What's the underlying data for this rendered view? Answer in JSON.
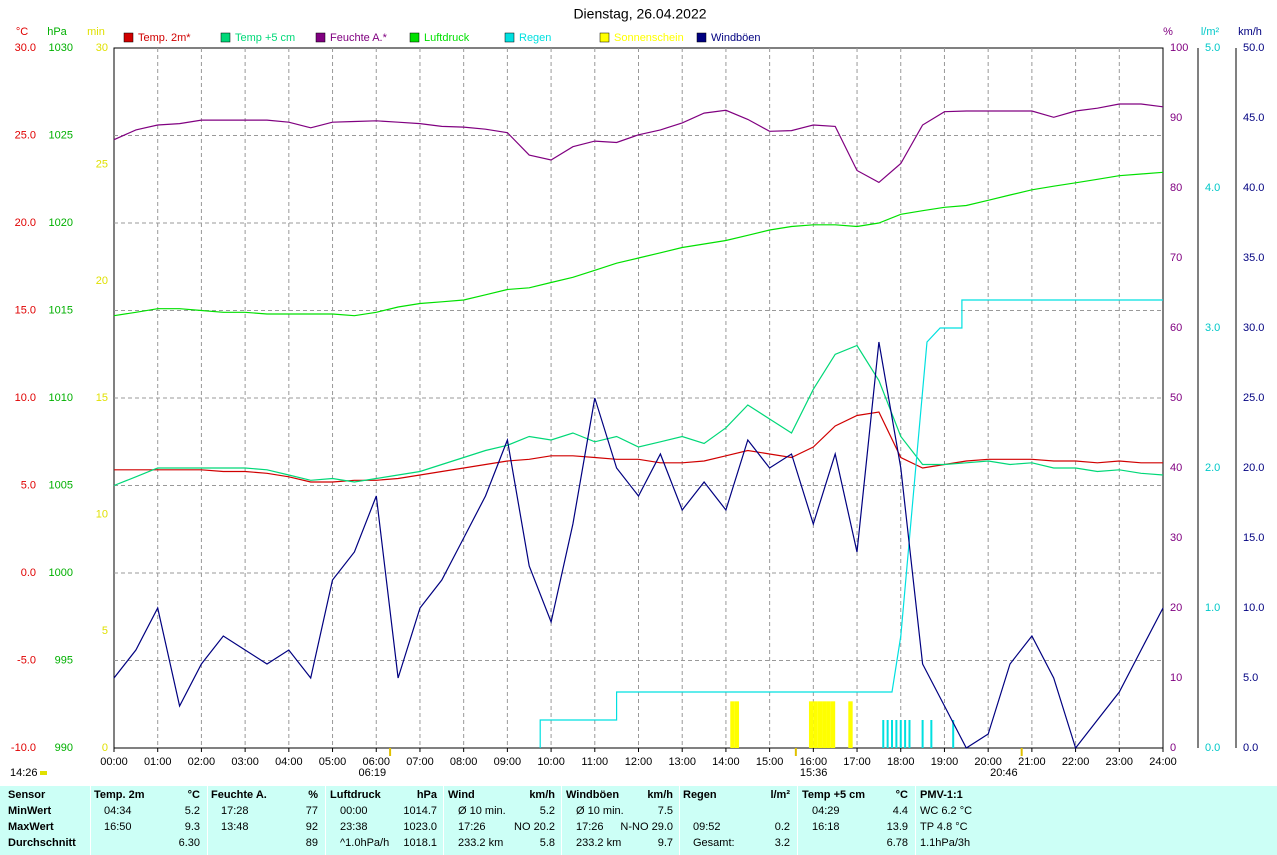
{
  "chart_data": {
    "type": "line",
    "title": "Dienstag, 26.04.2022",
    "xlim": [
      0,
      24
    ],
    "xticks": [
      {
        "value": 0,
        "label": "00:00"
      },
      {
        "value": 1,
        "label": "01:00"
      },
      {
        "value": 2,
        "label": "02:00"
      },
      {
        "value": 3,
        "label": "03:00"
      },
      {
        "value": 4,
        "label": "04:00"
      },
      {
        "value": 5,
        "label": "05:00"
      },
      {
        "value": 6,
        "label": "06:00"
      },
      {
        "value": 7,
        "label": "07:00"
      },
      {
        "value": 8,
        "label": "08:00"
      },
      {
        "value": 9,
        "label": "09:00"
      },
      {
        "value": 10,
        "label": "10:00"
      },
      {
        "value": 11,
        "label": "11:00"
      },
      {
        "value": 12,
        "label": "12:00"
      },
      {
        "value": 13,
        "label": "13:00"
      },
      {
        "value": 14,
        "label": "14:00"
      },
      {
        "value": 15,
        "label": "15:00"
      },
      {
        "value": 16,
        "label": "16:00"
      },
      {
        "value": 17,
        "label": "17:00"
      },
      {
        "value": 18,
        "label": "18:00"
      },
      {
        "value": 19,
        "label": "19:00"
      },
      {
        "value": 20,
        "label": "20:00"
      },
      {
        "value": 21,
        "label": "21:00"
      },
      {
        "value": 22,
        "label": "22:00"
      },
      {
        "value": 23,
        "label": "23:00"
      },
      {
        "value": 24,
        "label": "24:00"
      }
    ],
    "x": [
      0,
      0.5,
      1,
      1.5,
      2,
      2.5,
      3,
      3.5,
      4,
      4.5,
      5,
      5.5,
      6,
      6.5,
      7,
      7.5,
      8,
      8.5,
      9,
      9.5,
      10,
      10.5,
      11,
      11.5,
      12,
      12.5,
      13,
      13.5,
      14,
      14.5,
      15,
      15.5,
      16,
      16.5,
      17,
      17.5,
      18,
      18.5,
      19,
      19.5,
      20,
      20.5,
      21,
      21.5,
      22,
      22.5,
      23,
      23.5,
      24
    ],
    "grid": true,
    "axes": [
      {
        "id": "y",
        "label": "°C",
        "color": "#e00000",
        "side": "left",
        "lim": [
          -10,
          30
        ],
        "ticks": [
          {
            "value": 30,
            "label": "30.0"
          },
          {
            "value": 25,
            "label": "25.0"
          },
          {
            "value": 20,
            "label": "20.0"
          },
          {
            "value": 15,
            "label": "15.0"
          },
          {
            "value": 10,
            "label": "10.0"
          },
          {
            "value": 5,
            "label": "5.0"
          },
          {
            "value": 0,
            "label": "0.0"
          },
          {
            "value": -5,
            "label": "-5.0"
          },
          {
            "value": -10,
            "label": "-10.0"
          }
        ]
      },
      {
        "id": "y2",
        "label": "hPa",
        "color": "#00b000",
        "side": "left",
        "lim": [
          990,
          1030
        ],
        "ticks": [
          1030,
          1025,
          1020,
          1015,
          1010,
          1005,
          1000,
          995,
          990
        ]
      },
      {
        "id": "y3",
        "label": "min",
        "color": "#e0e000",
        "side": "left",
        "lim": [
          0,
          30
        ],
        "ticks": [
          30,
          25,
          20,
          15,
          10,
          5,
          0
        ]
      },
      {
        "id": "y4",
        "label": "%",
        "color": "#800080",
        "side": "right",
        "lim": [
          0,
          100
        ],
        "ticks": [
          100,
          90,
          80,
          70,
          60,
          50,
          40,
          30,
          20,
          10,
          0
        ]
      },
      {
        "id": "y5",
        "label": "l/m²",
        "color": "#00c8c8",
        "side": "right",
        "lim": [
          0,
          5
        ],
        "ticks": [
          {
            "value": 5,
            "label": "5.0"
          },
          {
            "value": 4,
            "label": "4.0"
          },
          {
            "value": 3,
            "label": "3.0"
          },
          {
            "value": 2,
            "label": "2.0"
          },
          {
            "value": 1,
            "label": "1.0"
          },
          {
            "value": 0,
            "label": "0.0"
          }
        ]
      },
      {
        "id": "y6",
        "label": "km/h",
        "color": "#000080",
        "side": "right",
        "lim": [
          0,
          50
        ],
        "ticks": [
          {
            "value": 50,
            "label": "50.0"
          },
          {
            "value": 45,
            "label": "45.0"
          },
          {
            "value": 40,
            "label": "40.0"
          },
          {
            "value": 35,
            "label": "35.0"
          },
          {
            "value": 30,
            "label": "30.0"
          },
          {
            "value": 25,
            "label": "25.0"
          },
          {
            "value": 20,
            "label": "20.0"
          },
          {
            "value": 15,
            "label": "15.0"
          },
          {
            "value": 10,
            "label": "10.0"
          },
          {
            "value": 5,
            "label": "5.0"
          },
          {
            "value": 0,
            "label": "0.0"
          }
        ]
      }
    ],
    "series": [
      {
        "name": "Temp. 2m*",
        "color": "#d00000",
        "axis": "y",
        "type": "line",
        "values": [
          5.9,
          5.9,
          5.9,
          5.9,
          5.9,
          5.8,
          5.8,
          5.7,
          5.5,
          5.2,
          5.2,
          5.3,
          5.3,
          5.4,
          5.6,
          5.8,
          6.0,
          6.2,
          6.4,
          6.5,
          6.7,
          6.7,
          6.6,
          6.5,
          6.5,
          6.3,
          6.3,
          6.4,
          6.7,
          7.0,
          6.8,
          6.6,
          7.2,
          8.4,
          9.0,
          9.2,
          6.6,
          6.0,
          6.2,
          6.4,
          6.5,
          6.5,
          6.5,
          6.4,
          6.4,
          6.3,
          6.4,
          6.3,
          6.3
        ]
      },
      {
        "name": "Temp +5 cm",
        "color": "#00d878",
        "axis": "y",
        "type": "line",
        "values": [
          5.0,
          5.5,
          6.0,
          6.0,
          6.0,
          6.0,
          6.0,
          5.9,
          5.6,
          5.3,
          5.4,
          5.2,
          5.4,
          5.6,
          5.8,
          6.2,
          6.6,
          7.0,
          7.3,
          7.8,
          7.6,
          8.0,
          7.5,
          7.8,
          7.2,
          7.5,
          7.8,
          7.4,
          8.3,
          9.6,
          8.8,
          8.0,
          10.5,
          12.5,
          13.0,
          11.0,
          7.8,
          6.2,
          6.2,
          6.3,
          6.4,
          6.2,
          6.3,
          6.0,
          6.0,
          5.8,
          5.9,
          5.7,
          5.6
        ]
      },
      {
        "name": "Feuchte A.*",
        "color": "#800080",
        "axis": "y4",
        "type": "line",
        "values": [
          86.9,
          88.3,
          89.0,
          89.2,
          89.7,
          89.7,
          89.7,
          89.7,
          89.4,
          88.6,
          89.4,
          89.5,
          89.6,
          89.4,
          89.2,
          88.8,
          88.7,
          88.4,
          87.9,
          84.7,
          84.0,
          85.9,
          86.7,
          86.5,
          87.6,
          88.3,
          89.3,
          90.7,
          91.1,
          89.8,
          88.1,
          88.2,
          89.0,
          88.8,
          82.5,
          80.8,
          83.5,
          89.0,
          90.9,
          91.0,
          91.0,
          91.0,
          91.0,
          90.1,
          91.0,
          91.4,
          92.0,
          92.0,
          91.6
        ]
      },
      {
        "name": "Luftdruck",
        "color": "#00e000",
        "axis": "y2",
        "type": "line",
        "values": [
          1014.7,
          1014.9,
          1015.1,
          1015.1,
          1015.0,
          1014.9,
          1014.9,
          1014.8,
          1014.8,
          1014.8,
          1014.8,
          1014.7,
          1014.9,
          1015.2,
          1015.4,
          1015.5,
          1015.6,
          1015.9,
          1016.2,
          1016.3,
          1016.6,
          1016.9,
          1017.3,
          1017.7,
          1018.0,
          1018.3,
          1018.6,
          1018.8,
          1019.0,
          1019.3,
          1019.6,
          1019.8,
          1019.9,
          1019.9,
          1019.8,
          1020.0,
          1020.5,
          1020.7,
          1020.9,
          1021.0,
          1021.3,
          1021.6,
          1021.9,
          1022.1,
          1022.3,
          1022.5,
          1022.7,
          1022.8,
          1022.9
        ]
      },
      {
        "name": "Regen",
        "color": "#00e0e0",
        "axis": "y5",
        "type": "line",
        "x": [
          9.75,
          9.75,
          11.5,
          11.5,
          17.8,
          18.0,
          18.2,
          18.4,
          18.6,
          18.9,
          19.4,
          19.4,
          24
        ],
        "values": [
          0,
          0.2,
          0.2,
          0.4,
          0.4,
          0.8,
          1.5,
          2.2,
          2.9,
          3.0,
          3.0,
          3.2,
          3.2
        ],
        "bars_x": [
          17.6,
          17.7,
          17.8,
          17.9,
          18.0,
          18.1,
          18.2,
          18.5,
          18.7,
          19.2
        ],
        "bars": [
          0.2,
          0.2,
          0.2,
          0.2,
          0.2,
          0.2,
          0.2,
          0.2,
          0.2,
          0.2
        ]
      },
      {
        "name": "Sonnenschein",
        "color": "#ffff00",
        "axis": "y3",
        "type": "bar",
        "x": [
          14.1,
          14.2,
          15.9,
          16.0,
          16.1,
          16.2,
          16.3,
          16.4,
          16.8
        ],
        "values": [
          2,
          2,
          2,
          2,
          2,
          2,
          2,
          2,
          2
        ]
      },
      {
        "name": "Windböen",
        "color": "#000080",
        "axis": "y6",
        "type": "line",
        "values": [
          5,
          7,
          10,
          3,
          6,
          8,
          7,
          6,
          7,
          5,
          12,
          14,
          18,
          5,
          10,
          12,
          15,
          18,
          22,
          13,
          9,
          16,
          25,
          20,
          18,
          21,
          17,
          19,
          17,
          22,
          20,
          21,
          16,
          21,
          14,
          29,
          20,
          6,
          3,
          0,
          1,
          6,
          8,
          5,
          0,
          2,
          4,
          7,
          10
        ]
      }
    ],
    "markers": [
      {
        "value": 6.3167,
        "label": "06:19"
      },
      {
        "value": 15.6,
        "label": "15:36"
      },
      {
        "value": 20.7667,
        "label": "20:46"
      }
    ],
    "day_length": "14:26"
  },
  "table": {
    "corner": "Sensor",
    "columns": [
      [
        "Temp. 2m",
        "°C"
      ],
      [
        "Feuchte A.",
        "%"
      ],
      [
        "Luftdruck",
        "hPa"
      ],
      [
        "Wind",
        "km/h"
      ],
      [
        "Windböen",
        "km/h"
      ],
      [
        "Regen",
        "l/m²"
      ],
      [
        "Temp +5 cm",
        "°C"
      ],
      [
        "PMV-1:1"
      ]
    ],
    "rows": [
      {
        "label": "MinWert",
        "cells": [
          [
            "04:34",
            "5.2"
          ],
          [
            "17:28",
            "77"
          ],
          [
            "00:00",
            "1014.7"
          ],
          [
            "Ø 10 min.",
            "5.2"
          ],
          [
            "Ø 10 min.",
            "7.5"
          ],
          [
            null,
            null
          ],
          [
            "04:29",
            "4.4"
          ],
          [
            "WC 6.2 °C"
          ]
        ]
      },
      {
        "label": "MaxWert",
        "cells": [
          [
            "16:50",
            "9.3"
          ],
          [
            "13:48",
            "92"
          ],
          [
            "23:38",
            "1023.0"
          ],
          [
            "17:26",
            "NO 20.2"
          ],
          [
            "17:26",
            "N-NO 29.0"
          ],
          [
            "09:52",
            "0.2"
          ],
          [
            "16:18",
            "13.9"
          ],
          [
            "TP 4.8 °C"
          ]
        ]
      },
      {
        "label": "Durchschnitt",
        "cells": [
          [
            null,
            "6.30"
          ],
          [
            null,
            "89"
          ],
          [
            "^1.0hPa/h",
            "1018.1"
          ],
          [
            "233.2 km",
            "5.8"
          ],
          [
            "233.2 km",
            "9.7"
          ],
          [
            "Gesamt:",
            "3.2"
          ],
          [
            null,
            "6.78"
          ],
          [
            "1.1hPa/3h"
          ]
        ]
      }
    ]
  }
}
